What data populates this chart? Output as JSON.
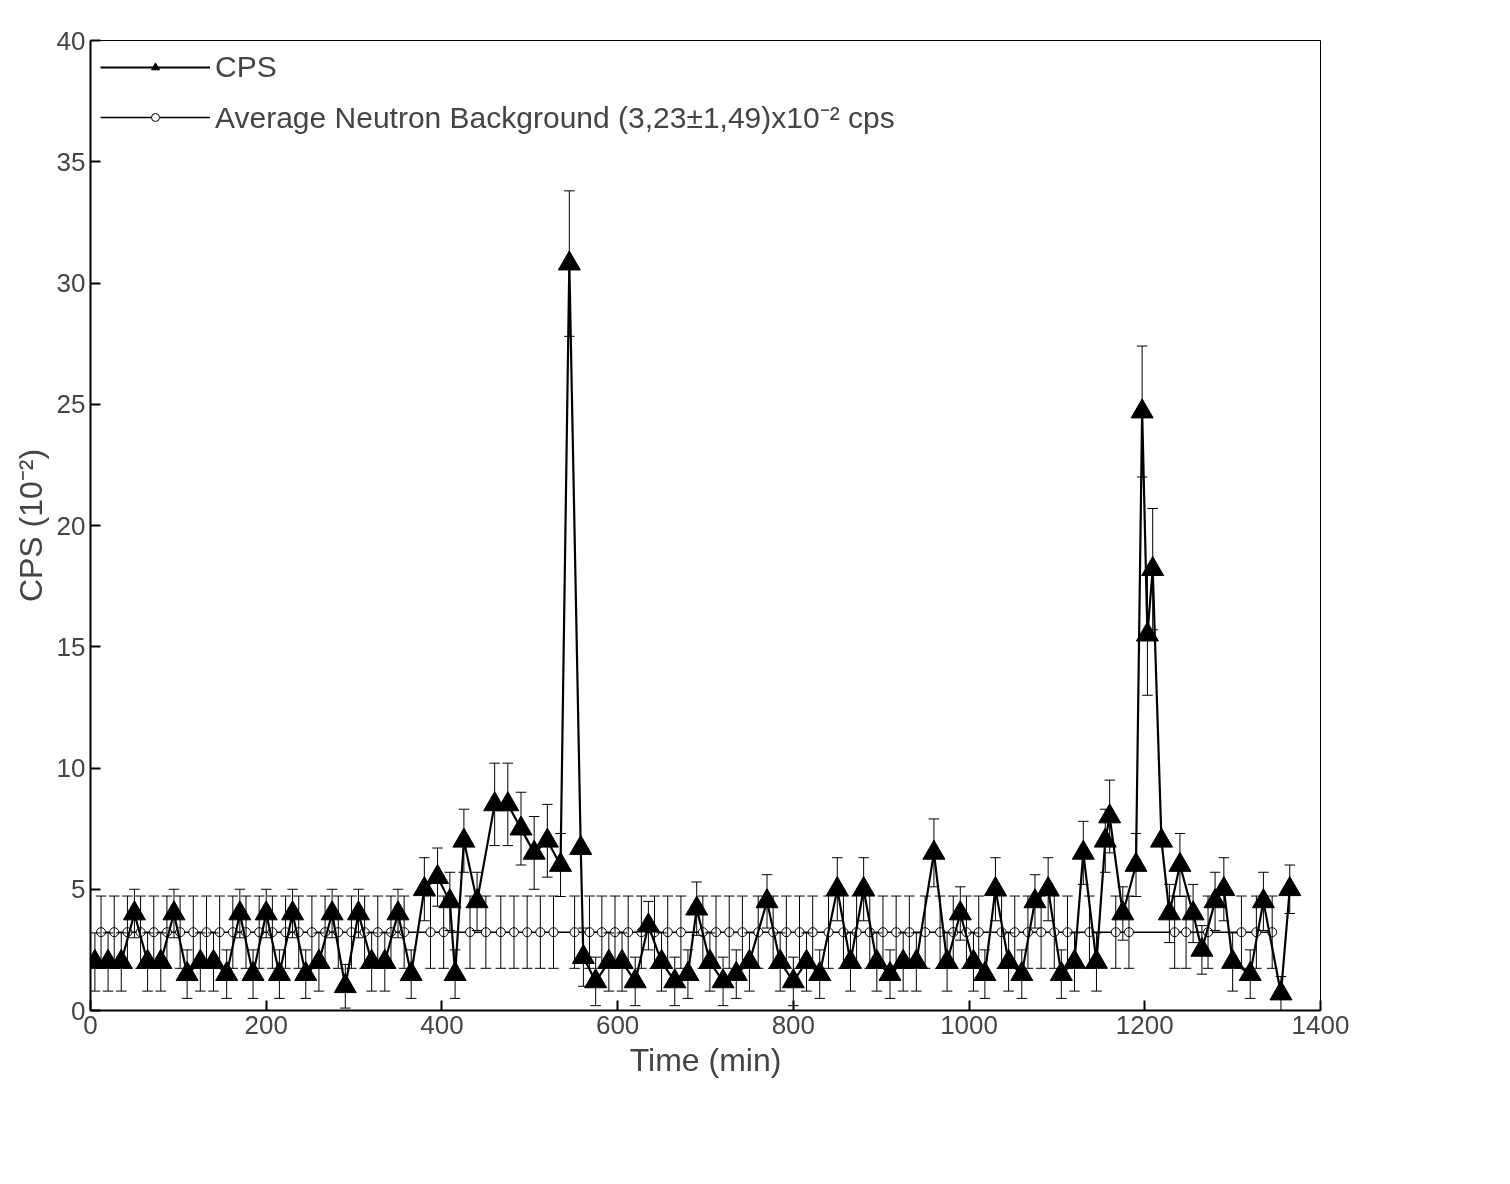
{
  "chart_data": {
    "type": "line",
    "xlabel": "Time (min)",
    "ylabel": "CPS (10⁻²)",
    "xlim": [
      0,
      1400
    ],
    "ylim": [
      0,
      40
    ],
    "xticks": [
      0,
      200,
      400,
      600,
      800,
      1000,
      1200,
      1400
    ],
    "yticks": [
      0,
      5,
      10,
      15,
      20,
      25,
      30,
      35,
      40
    ],
    "grid": false,
    "legend": "top left",
    "series": [
      {
        "name": "CPS",
        "color": "#000000",
        "marker": "triangle",
        "x": [
          5,
          20,
          35,
          50,
          65,
          80,
          95,
          110,
          125,
          140,
          155,
          170,
          185,
          200,
          215,
          230,
          245,
          260,
          275,
          290,
          305,
          320,
          335,
          350,
          365,
          380,
          395,
          409,
          415,
          425,
          440,
          460,
          475,
          490,
          505,
          520,
          535,
          545,
          558,
          561,
          575,
          590,
          605,
          620,
          635,
          650,
          665,
          680,
          690,
          705,
          720,
          735,
          750,
          770,
          785,
          800,
          815,
          830,
          850,
          865,
          880,
          895,
          910,
          925,
          940,
          960,
          975,
          990,
          1005,
          1018,
          1030,
          1045,
          1060,
          1075,
          1090,
          1105,
          1120,
          1130,
          1145,
          1155,
          1160,
          1175,
          1190,
          1197,
          1203,
          1209,
          1219,
          1228,
          1240,
          1255,
          1265,
          1280,
          1290,
          1300,
          1320,
          1335,
          1355,
          1365
        ],
        "values": [
          2,
          2,
          2,
          4,
          2,
          2,
          4,
          1.5,
          2,
          2,
          1.5,
          4,
          1.5,
          4,
          1.5,
          4,
          1.5,
          2,
          4,
          1,
          4,
          2,
          2,
          4,
          1.5,
          5,
          5.5,
          4.5,
          1.5,
          7,
          4.5,
          8.5,
          8.5,
          7.5,
          6.5,
          7,
          6,
          30.8,
          6.7,
          2.2,
          1.2,
          2,
          2,
          1.2,
          3.5,
          2,
          1.2,
          1.5,
          4.2,
          2,
          1.2,
          1.5,
          2,
          4.5,
          2,
          1.2,
          2,
          1.5,
          5,
          2,
          5,
          2,
          1.5,
          2,
          2,
          6.5,
          2,
          4,
          2,
          1.5,
          5,
          2,
          1.5,
          4.5,
          5,
          1.5,
          2,
          6.5,
          2,
          7,
          8,
          4,
          6,
          24.7,
          15.5,
          18.2,
          7,
          4,
          6,
          4,
          2.5,
          4.5,
          5,
          2,
          1.5,
          4.5,
          0.7,
          5
        ],
        "errors": [
          1.2,
          1.2,
          1.2,
          1,
          1.2,
          1.2,
          1,
          1,
          1.2,
          1.2,
          1,
          1,
          1,
          1,
          1,
          1,
          1,
          1.2,
          1,
          0.9,
          1,
          1.2,
          1.2,
          1,
          1,
          1.3,
          1.2,
          1.2,
          1,
          1.3,
          1.2,
          1.7,
          1.7,
          1.5,
          1.5,
          1.5,
          1.3,
          3,
          null,
          1.2,
          1,
          1.2,
          1.2,
          1,
          1,
          1.2,
          1,
          1,
          1.1,
          1.2,
          1,
          1,
          1.2,
          1.1,
          1.2,
          1,
          1.2,
          1,
          1.3,
          1.2,
          1.3,
          1.2,
          1,
          1.2,
          1.2,
          1.4,
          1.2,
          1.1,
          1.2,
          1,
          1.3,
          1.2,
          1,
          1.1,
          1.3,
          1,
          1.2,
          1.3,
          1.2,
          1.3,
          1.5,
          1.1,
          1.3,
          2.7,
          2.5,
          2.5,
          null,
          1.2,
          1.3,
          1.2,
          1,
          1.2,
          1.3,
          1.2,
          1,
          1.2,
          0.7,
          1
        ]
      },
      {
        "name": "Average Neutron Background (3,23±1,49)x10⁻² cps",
        "color": "#000000",
        "marker": "circle",
        "x": [
          12,
          27,
          42,
          57,
          72,
          87,
          102,
          117,
          132,
          147,
          162,
          177,
          192,
          207,
          222,
          237,
          252,
          267,
          282,
          297,
          312,
          327,
          342,
          357,
          387,
          402,
          432,
          450,
          467,
          482,
          497,
          512,
          527,
          551,
          568,
          582,
          597,
          612,
          627,
          642,
          657,
          672,
          697,
          712,
          727,
          742,
          760,
          777,
          792,
          807,
          822,
          840,
          857,
          872,
          887,
          902,
          917,
          932,
          950,
          967,
          982,
          997,
          1011,
          1037,
          1052,
          1067,
          1082,
          1097,
          1112,
          1137,
          1167,
          1182,
          1234,
          1247,
          1272,
          1310,
          1327,
          1345
        ],
        "values": [
          3.23,
          3.23,
          3.23,
          3.23,
          3.23,
          3.23,
          3.23,
          3.23,
          3.23,
          3.23,
          3.23,
          3.23,
          3.23,
          3.23,
          3.23,
          3.23,
          3.23,
          3.23,
          3.23,
          3.23,
          3.23,
          3.23,
          3.23,
          3.23,
          3.23,
          3.23,
          3.23,
          3.23,
          3.23,
          3.23,
          3.23,
          3.23,
          3.23,
          3.23,
          3.23,
          3.23,
          3.23,
          3.23,
          3.23,
          3.23,
          3.23,
          3.23,
          3.23,
          3.23,
          3.23,
          3.23,
          3.23,
          3.23,
          3.23,
          3.23,
          3.23,
          3.23,
          3.23,
          3.23,
          3.23,
          3.23,
          3.23,
          3.23,
          3.23,
          3.23,
          3.23,
          3.23,
          3.23,
          3.23,
          3.23,
          3.23,
          3.23,
          3.23,
          3.23,
          3.23,
          3.23,
          3.23,
          3.23,
          3.23,
          3.23,
          3.23,
          3.23,
          3.23
        ],
        "errors": [
          1.49,
          1.49,
          1.49,
          1.49,
          1.49,
          1.49,
          1.49,
          1.49,
          1.49,
          1.49,
          1.49,
          1.49,
          1.49,
          1.49,
          1.49,
          1.49,
          1.49,
          1.49,
          1.49,
          1.49,
          1.49,
          1.49,
          1.49,
          1.49,
          1.49,
          1.49,
          1.49,
          1.49,
          1.49,
          1.49,
          1.49,
          1.49,
          1.49,
          1.49,
          1.49,
          1.49,
          1.49,
          1.49,
          1.49,
          1.49,
          1.49,
          1.49,
          1.49,
          1.49,
          1.49,
          1.49,
          1.49,
          1.49,
          1.49,
          1.49,
          1.49,
          1.49,
          1.49,
          1.49,
          1.49,
          1.49,
          1.49,
          1.49,
          1.49,
          1.49,
          1.49,
          1.49,
          1.49,
          1.49,
          1.49,
          1.49,
          1.49,
          1.49,
          1.49,
          1.49,
          1.49,
          1.49,
          1.49,
          1.49,
          1.49,
          1.49,
          1.49,
          1.49
        ]
      }
    ]
  }
}
